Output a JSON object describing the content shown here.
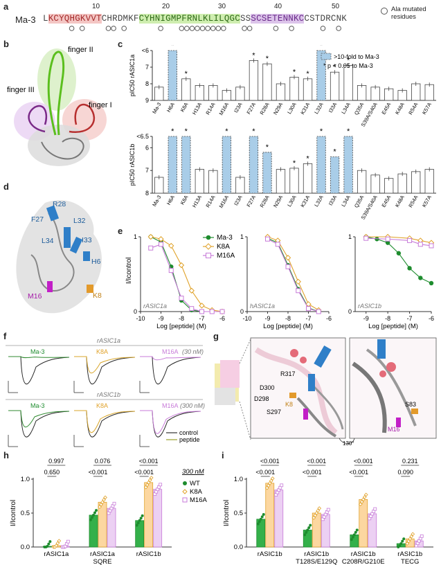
{
  "panel_letters": [
    "a",
    "b",
    "c",
    "d",
    "e",
    "f",
    "g",
    "h",
    "i"
  ],
  "seq": {
    "name": "Ma-3",
    "positions": [
      "10",
      "20",
      "30",
      "40",
      "50"
    ],
    "segments": [
      {
        "text": "L",
        "region": "none"
      },
      {
        "text": "KCYQHGKVVT",
        "region": "finger1"
      },
      {
        "text": "CHRDMKF",
        "region": "none"
      },
      {
        "text": "CYHNIGMPFRNLKLILQGC",
        "region": "finger2"
      },
      {
        "text": "SS",
        "region": "none"
      },
      {
        "text": "SCSETENNKC",
        "region": "finger3"
      },
      {
        "text": "CSTDRCNK",
        "region": "none"
      }
    ],
    "legend": "Ala mutated residues",
    "colors": {
      "finger1": "#f4c6c4",
      "finger2": "#cfeeb0",
      "finger3": "#dcc4ea"
    }
  },
  "struct_b": {
    "finger1": "finger I",
    "finger2": "finger II",
    "finger3": "finger III"
  },
  "struct_d": [
    "R28",
    "F27",
    "L32",
    "L34",
    "I33",
    "H6",
    "M16",
    "K8"
  ],
  "panel_c": {
    "legend": [
      ">10-fold to Ma-3",
      "* p < 0.05 to Ma-3"
    ],
    "top_ylabel": "pIC50 rASIC1a",
    "bot_ylabel": "pIC50 rASIC1b",
    "top_ticks": [
      "<6",
      "7",
      "8",
      "9"
    ],
    "bot_ticks": [
      "<6.5",
      "6",
      "7",
      "8"
    ],
    "categories": [
      "Ma-3",
      "H6A",
      "K8A",
      "H13A",
      "R14A",
      "M16A",
      "I23A",
      "F27A",
      "R28A",
      "N29A",
      "L30A",
      "K31A",
      "L32A",
      "I33A",
      "L34A",
      "Q35A",
      "S39A/S40A",
      "E45A",
      "K48A",
      "R54A",
      "K57A"
    ]
  },
  "chart_data": [
    {
      "type": "bar",
      "panel": "c-top",
      "ylabel": "pIC50 rASIC1a",
      "ylim": [
        9,
        6
      ],
      "categories": [
        "Ma-3",
        "H6A",
        "K8A",
        "H13A",
        "R14A",
        "M16A",
        "I23A",
        "F27A",
        "R28A",
        "N29A",
        "L30A",
        "K31A",
        "L32A",
        "I33A",
        "L34A",
        "Q35A",
        "S39A/S40A",
        "E45A",
        "K48A",
        "R54A",
        "K57A"
      ],
      "values": [
        8.2,
        6,
        7.7,
        8.1,
        8.1,
        8.4,
        8.2,
        6.6,
        6.8,
        8.0,
        7.6,
        7.7,
        6,
        7.3,
        6.9,
        8.1,
        8.2,
        8.3,
        8.4,
        8.0,
        8.05
      ],
      "shaded": [
        false,
        true,
        false,
        false,
        false,
        false,
        false,
        false,
        false,
        false,
        false,
        false,
        true,
        false,
        false,
        false,
        false,
        false,
        false,
        false,
        false
      ],
      "star": [
        false,
        true,
        true,
        false,
        false,
        false,
        false,
        true,
        true,
        false,
        true,
        true,
        true,
        true,
        true,
        false,
        false,
        false,
        false,
        false,
        false
      ]
    },
    {
      "type": "bar",
      "panel": "c-bottom",
      "ylabel": "pIC50 rASIC1b",
      "ylim": [
        8,
        5.5
      ],
      "categories": [
        "Ma-3",
        "H6A",
        "K8A",
        "H13A",
        "R14A",
        "M16A",
        "I23A",
        "F27A",
        "R28A",
        "N29A",
        "L30A",
        "K31A",
        "L32A",
        "I33A",
        "L34A",
        "Q35A",
        "S39A/S40A",
        "E45A",
        "K48A",
        "R54A",
        "K57A"
      ],
      "values": [
        7.3,
        5.5,
        5.5,
        6.95,
        7.0,
        5.5,
        7.3,
        5.5,
        6.2,
        6.95,
        6.9,
        6.7,
        5.5,
        6.4,
        5.5,
        7.0,
        7.2,
        7.35,
        7.15,
        7.05,
        6.95
      ],
      "shaded": [
        false,
        true,
        true,
        false,
        false,
        true,
        false,
        true,
        true,
        false,
        false,
        false,
        true,
        true,
        true,
        false,
        false,
        false,
        false,
        false,
        false
      ],
      "star": [
        false,
        true,
        true,
        false,
        false,
        true,
        false,
        true,
        true,
        false,
        true,
        true,
        true,
        true,
        true,
        false,
        false,
        false,
        false,
        false,
        false
      ]
    },
    {
      "type": "line",
      "panel": "e",
      "xlabel": "Log [peptide] (M)",
      "ylabel": "I/Icontrol",
      "series_names": [
        "Ma-3",
        "K8A",
        "M16A"
      ],
      "subplots": [
        {
          "label": "rASIC1a",
          "xlim": [
            -10,
            -6
          ],
          "xticks": [
            "-10",
            "-9",
            "-8",
            "-7",
            "-6"
          ],
          "series": [
            {
              "name": "Ma-3",
              "x": [
                -9.5,
                -9,
                -8.5,
                -8,
                -7.5,
                -7,
                -6.5,
                -6
              ],
              "y": [
                1.0,
                0.93,
                0.6,
                0.15,
                0.02,
                0,
                0,
                0
              ]
            },
            {
              "name": "K8A",
              "x": [
                -9.5,
                -9,
                -8.5,
                -8,
                -7.5,
                -7,
                -6.5,
                -6
              ],
              "y": [
                1.0,
                0.97,
                0.88,
                0.62,
                0.28,
                0.08,
                0.02,
                0
              ]
            },
            {
              "name": "M16A",
              "x": [
                -9.5,
                -9,
                -8.5,
                -8,
                -7.5,
                -7,
                -6.5,
                -6
              ],
              "y": [
                0.85,
                0.9,
                0.55,
                0.18,
                0.04,
                0,
                0,
                0
              ]
            }
          ]
        },
        {
          "label": "hASIC1a",
          "xlim": [
            -10,
            -6
          ],
          "xticks": [
            "-10",
            "-9",
            "-8",
            "-7",
            "-6"
          ],
          "series": [
            {
              "name": "Ma-3",
              "x": [
                -9,
                -8.5,
                -8,
                -7.5,
                -7,
                -6.5
              ],
              "y": [
                0.98,
                0.92,
                0.62,
                0.3,
                0.05,
                0
              ]
            },
            {
              "name": "K8A",
              "x": [
                -9,
                -8.5,
                -8,
                -7.5,
                -7,
                -6.5
              ],
              "y": [
                1.0,
                0.95,
                0.72,
                0.4,
                0.1,
                0.02
              ]
            },
            {
              "name": "M16A",
              "x": [
                -9,
                -8.5,
                -8,
                -7.5,
                -7,
                -6.5
              ],
              "y": [
                0.97,
                0.9,
                0.6,
                0.28,
                0.04,
                0
              ]
            }
          ]
        },
        {
          "label": "rASIC1b",
          "xlim": [
            -9.5,
            -6
          ],
          "xticks": [
            "-9",
            "-8",
            "-7",
            "-6"
          ],
          "series": [
            {
              "name": "Ma-3",
              "x": [
                -9,
                -8.5,
                -8,
                -7.5,
                -7,
                -6.5,
                -6
              ],
              "y": [
                1.0,
                0.97,
                0.92,
                0.78,
                0.58,
                0.45,
                0.38
              ]
            },
            {
              "name": "K8A",
              "x": [
                -9,
                -8,
                -7,
                -6.5,
                -6
              ],
              "y": [
                1.0,
                1.0,
                0.98,
                0.95,
                0.92
              ]
            },
            {
              "name": "M16A",
              "x": [
                -9,
                -8,
                -7,
                -6.5,
                -6
              ],
              "y": [
                0.98,
                0.97,
                0.95,
                0.9,
                0.88
              ]
            }
          ]
        }
      ]
    },
    {
      "type": "bar",
      "panel": "h",
      "ylabel": "I/Icontrol",
      "ylim": [
        0,
        1.0
      ],
      "categories": [
        "rASIC1a",
        "rASIC1a SQRE",
        "rASIC1b"
      ],
      "series": [
        {
          "name": "WT",
          "values": [
            0.01,
            0.47,
            0.39
          ]
        },
        {
          "name": "K8A",
          "values": [
            0.02,
            0.66,
            0.95
          ]
        },
        {
          "name": "M16A",
          "values": [
            0.01,
            0.57,
            0.85
          ]
        }
      ],
      "p_values": [
        "0.997",
        "0.650",
        "0.076",
        "<0.001",
        "<0.001",
        "<0.001"
      ],
      "legend_title": "300 nM"
    },
    {
      "type": "bar",
      "panel": "i",
      "ylabel": "I/Icontrol",
      "ylim": [
        0,
        1.0
      ],
      "categories": [
        "rASIC1b",
        "rASIC1b T128S/E129Q",
        "rASIC1b C208R/G210E",
        "rASIC1b TECG"
      ],
      "series": [
        {
          "name": "WT",
          "values": [
            0.41,
            0.25,
            0.18,
            0.05
          ]
        },
        {
          "name": "K8A",
          "values": [
            0.94,
            0.5,
            0.7,
            0.12
          ]
        },
        {
          "name": "M16A",
          "values": [
            0.84,
            0.48,
            0.49,
            0.09
          ]
        }
      ],
      "p_values": [
        "<0.001",
        "<0.001",
        "<0.001",
        "<0.001",
        "<0.001",
        "<0.001",
        "0.231",
        "0.090"
      ]
    }
  ],
  "panel_e": {
    "xlabel": "Log [peptide] (M)",
    "ylabel": "I/Icontrol",
    "yticks": [
      "0",
      "1"
    ]
  },
  "panel_f": {
    "row1_title": "rASIC1a",
    "row2_title": "rASIC1b",
    "conc1": "(30 nM)",
    "conc2": "(300 nM)",
    "labels": [
      "Ma-3",
      "K8A",
      "M16A"
    ],
    "legend": [
      "control",
      "peptide"
    ]
  },
  "panel_g": {
    "labels": [
      "R317",
      "D300",
      "D298",
      "S297",
      "K8",
      "S83",
      "M16",
      "130°"
    ]
  },
  "panel_h": {
    "yticks": [
      "0.0",
      "0.5",
      "1.0"
    ],
    "legend_title": "300 nM",
    "legend": [
      "WT",
      "K8A",
      "M16A"
    ],
    "x1": "rASIC1a",
    "x2a": "rASIC1a",
    "x2b": "SQRE",
    "x3": "rASIC1b",
    "p": [
      "0.997",
      "0.650",
      "0.076",
      "<0.001",
      "<0.001",
      "<0.001"
    ]
  },
  "panel_i": {
    "x1": "rASIC1b",
    "x2a": "rASIC1b",
    "x2b": "T128S/E129Q",
    "x3a": "rASIC1b",
    "x3b": "C208R/G210E",
    "x4a": "rASIC1b",
    "x4b": "TECG",
    "p": [
      "<0.001",
      "<0.001",
      "<0.001",
      "<0.001",
      "<0.001",
      "<0.001",
      "0.231",
      "0.090"
    ]
  },
  "colors": {
    "wt": "#1e8c2e",
    "k8a": "#e0a22a",
    "m16a": "#c77ad8",
    "shade": "#a9cde8",
    "finger1": "#e06a6a",
    "finger2": "#7fd13b",
    "finger3": "#b04ec4",
    "blue": "#3a7dc4"
  }
}
